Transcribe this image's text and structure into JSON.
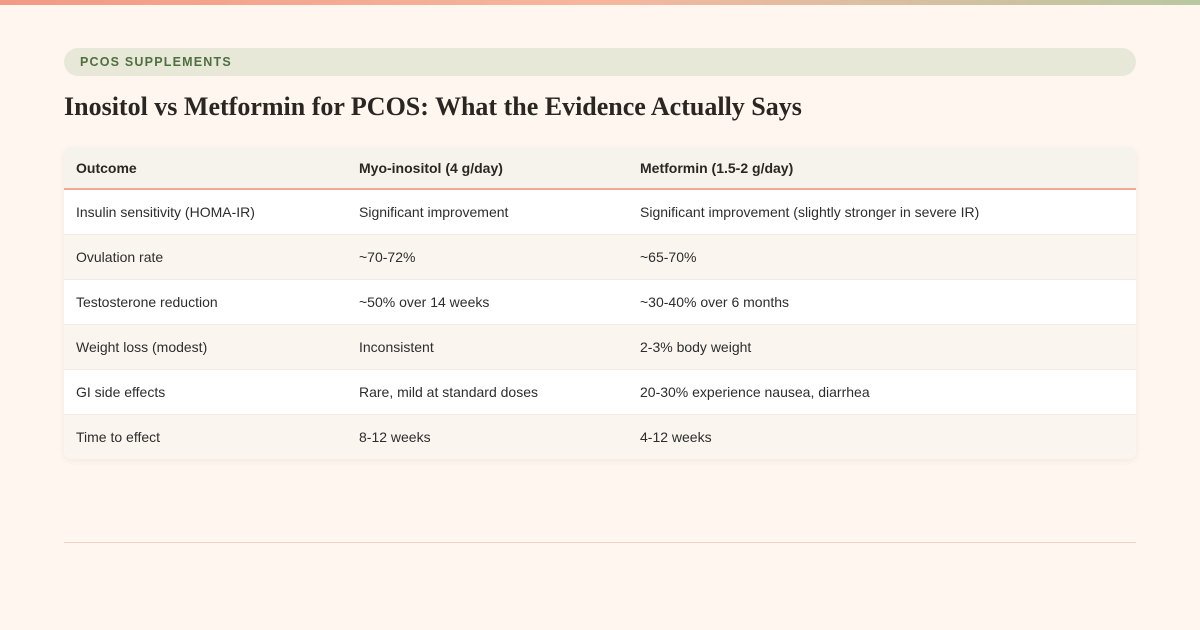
{
  "category": "PCOS SUPPLEMENTS",
  "title": "Inositol vs Metformin for PCOS: What the Evidence Actually Says",
  "colors": {
    "accent_orange": "#f29a84",
    "accent_green": "#4f6f3f",
    "background": "#fef6ef"
  },
  "table": {
    "headers": [
      "Outcome",
      "Myo-inositol (4 g/day)",
      "Metformin (1.5-2 g/day)"
    ],
    "rows": [
      [
        "Insulin sensitivity (HOMA-IR)",
        "Significant improvement",
        "Significant improvement (slightly stronger in severe IR)"
      ],
      [
        "Ovulation rate",
        "~70-72%",
        "~65-70%"
      ],
      [
        "Testosterone reduction",
        "~50% over 14 weeks",
        "~30-40% over 6 months"
      ],
      [
        "Weight loss (modest)",
        "Inconsistent",
        "2-3% body weight"
      ],
      [
        "GI side effects",
        "Rare, mild at standard doses",
        "20-30% experience nausea, diarrhea"
      ],
      [
        "Time to effect",
        "8-12 weeks",
        "4-12 weeks"
      ]
    ]
  }
}
